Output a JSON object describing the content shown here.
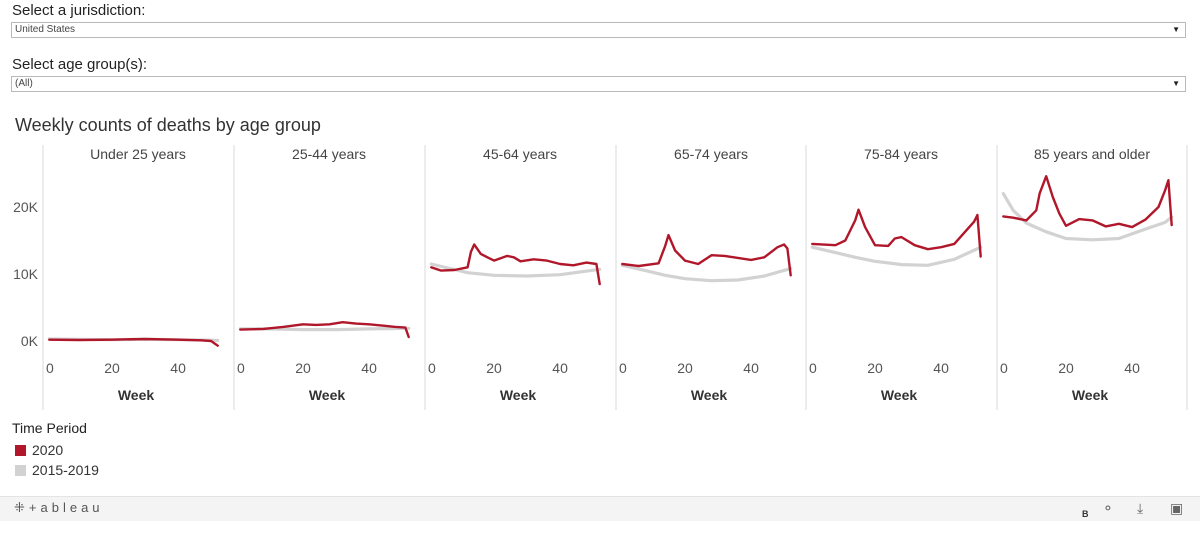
{
  "controls": {
    "jurisdiction_label": "Select a jurisdiction:",
    "jurisdiction_value": "United States",
    "age_label": "Select age group(s):",
    "age_value": "(All)"
  },
  "colors": {
    "series_2020": "#b0172a",
    "series_baseline": "#d2d2d2"
  },
  "footer": {
    "logo": "⁜+ableau",
    "b_label": "B"
  },
  "icons": {
    "share": "share-icon",
    "download": "download-icon",
    "fullscreen": "fullscreen-icon"
  },
  "chart_data": {
    "type": "line",
    "title": "Weekly counts of deaths by age group",
    "xlabel": "Week",
    "ylabel": "",
    "ylim": [
      -1000,
      27000
    ],
    "xlim": [
      0,
      53
    ],
    "x_ticks": [
      "0",
      "20",
      "40"
    ],
    "y_ticks": [
      "0K",
      "10K",
      "20K"
    ],
    "legend": {
      "title": "Time Period",
      "position": "bottom-left",
      "entries": [
        "2020",
        "2015-2019"
      ]
    },
    "panels": [
      {
        "name": "Under 25 years",
        "series": [
          {
            "name": "2020",
            "x": [
              1,
              10,
              20,
              30,
              40,
              47,
              50,
              52
            ],
            "y": [
              200,
              150,
              200,
              300,
              200,
              100,
              0,
              -700
            ]
          },
          {
            "name": "2015-2019",
            "x": [
              1,
              10,
              20,
              30,
              40,
              52
            ],
            "y": [
              300,
              250,
              200,
              250,
              200,
              100
            ]
          }
        ]
      },
      {
        "name": "25-44 years",
        "series": [
          {
            "name": "2020",
            "x": [
              1,
              8,
              14,
              20,
              24,
              28,
              32,
              36,
              40,
              44,
              48,
              51,
              52
            ],
            "y": [
              1700,
              1800,
              2100,
              2500,
              2400,
              2500,
              2800,
              2600,
              2500,
              2300,
              2100,
              2000,
              600
            ]
          },
          {
            "name": "2015-2019",
            "x": [
              1,
              10,
              20,
              30,
              40,
              52
            ],
            "y": [
              1800,
              1800,
              1700,
              1700,
              1800,
              1900
            ]
          }
        ]
      },
      {
        "name": "45-64 years",
        "series": [
          {
            "name": "2020",
            "x": [
              1,
              4,
              8,
              12,
              13,
              14,
              16,
              18,
              20,
              24,
              26,
              28,
              32,
              36,
              40,
              44,
              48,
              51,
              52
            ],
            "y": [
              11000,
              10500,
              10600,
              11000,
              13300,
              14400,
              13000,
              12500,
              12000,
              12700,
              12500,
              11900,
              12200,
              12000,
              11500,
              11300,
              11700,
              11500,
              8500
            ]
          },
          {
            "name": "2015-2019",
            "x": [
              1,
              6,
              12,
              20,
              30,
              40,
              52
            ],
            "y": [
              11500,
              10900,
              10200,
              9800,
              9700,
              9900,
              10700
            ]
          }
        ]
      },
      {
        "name": "65-74 years",
        "series": [
          {
            "name": "2020",
            "x": [
              1,
              6,
              12,
              14,
              15,
              17,
              20,
              24,
              28,
              32,
              36,
              40,
              44,
              48,
              50,
              51,
              52
            ],
            "y": [
              11500,
              11200,
              11600,
              14200,
              15800,
              13500,
              12000,
              11500,
              12800,
              12700,
              12400,
              12100,
              12500,
              14000,
              14400,
              13800,
              9800
            ]
          },
          {
            "name": "2015-2019",
            "x": [
              1,
              8,
              14,
              20,
              28,
              36,
              44,
              52
            ],
            "y": [
              11300,
              10500,
              9800,
              9300,
              9000,
              9100,
              9700,
              10800
            ]
          }
        ]
      },
      {
        "name": "75-84 years",
        "series": [
          {
            "name": "2020",
            "x": [
              1,
              8,
              11,
              14,
              15,
              17,
              20,
              24,
              26,
              28,
              32,
              36,
              40,
              44,
              48,
              50,
              51,
              52
            ],
            "y": [
              14500,
              14300,
              15000,
              18000,
              19600,
              17000,
              14300,
              14200,
              15300,
              15500,
              14300,
              13700,
              14000,
              14500,
              16700,
              17800,
              18800,
              12600
            ]
          },
          {
            "name": "2015-2019",
            "x": [
              1,
              8,
              14,
              20,
              28,
              36,
              44,
              52
            ],
            "y": [
              14000,
              13200,
              12500,
              11900,
              11400,
              11300,
              12200,
              14000
            ]
          }
        ]
      },
      {
        "name": "85 years and older",
        "series": [
          {
            "name": "2020",
            "x": [
              1,
              4,
              8,
              11,
              12,
              14,
              16,
              18,
              20,
              24,
              28,
              32,
              36,
              40,
              44,
              48,
              50,
              51,
              52
            ],
            "y": [
              18600,
              18400,
              18000,
              19500,
              22000,
              24600,
              21500,
              19000,
              17200,
              18200,
              18000,
              17100,
              17500,
              17000,
              18100,
              20000,
              22500,
              24000,
              17300
            ]
          },
          {
            "name": "2015-2019",
            "x": [
              1,
              4,
              8,
              14,
              20,
              28,
              36,
              44,
              50,
              52
            ],
            "y": [
              22000,
              19500,
              17600,
              16300,
              15300,
              15100,
              15300,
              16700,
              17700,
              18500
            ]
          }
        ]
      }
    ]
  }
}
